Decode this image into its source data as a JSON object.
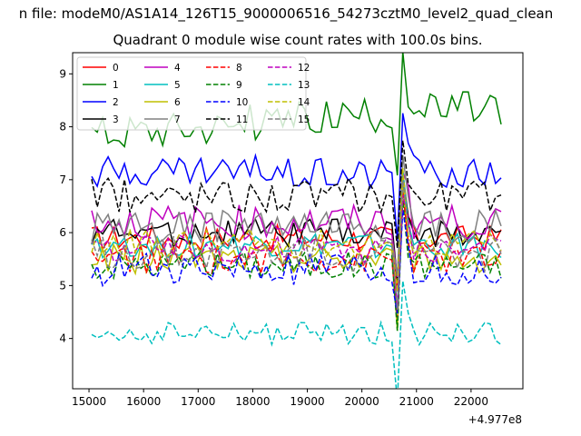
{
  "chart_data": {
    "type": "line",
    "suptitle": "n file: modeM0/AS1A14_126T15_9000006516_54273cztM0_level2_quad_clean",
    "title": "Quadrant 0 module wise count rates with 100.0s bins.",
    "xlabel": "",
    "ylabel": "",
    "x_offset_label": "+4.977e8",
    "xlim": [
      14700,
      22950
    ],
    "ylim": [
      3.05,
      9.4
    ],
    "x_ticks": [
      15000,
      16000,
      17000,
      18000,
      19000,
      20000,
      21000,
      22000
    ],
    "x_tick_labels": [
      "15000",
      "16000",
      "17000",
      "18000",
      "19000",
      "20000",
      "21000",
      "22000"
    ],
    "y_ticks": [
      4,
      5,
      6,
      7,
      8,
      9
    ],
    "y_tick_labels": [
      "4",
      "5",
      "6",
      "7",
      "8",
      "9"
    ],
    "legend_loc": "upper-left",
    "x_start": 15050,
    "x_step": 100,
    "x_count": 76,
    "spike_index": 56,
    "series": [
      {
        "name": "0",
        "color": "#ff0000",
        "dash": false,
        "mean": 5.9,
        "spread": 0.22
      },
      {
        "name": "1",
        "color": "#008000",
        "dash": false,
        "mean": 7.9,
        "spread": 0.32,
        "trend": 0.45
      },
      {
        "name": "2",
        "color": "#0000ff",
        "dash": false,
        "mean": 7.15,
        "spread": 0.28
      },
      {
        "name": "3",
        "color": "#000000",
        "dash": false,
        "mean": 6.0,
        "spread": 0.25
      },
      {
        "name": "4",
        "color": "#bf00bf",
        "dash": false,
        "mean": 6.2,
        "spread": 0.3
      },
      {
        "name": "5",
        "color": "#00bfbf",
        "dash": false,
        "mean": 5.75,
        "spread": 0.22
      },
      {
        "name": "6",
        "color": "#bfbf00",
        "dash": false,
        "mean": 5.5,
        "spread": 0.25
      },
      {
        "name": "7",
        "color": "#808080",
        "dash": false,
        "mean": 6.1,
        "spread": 0.3
      },
      {
        "name": "8",
        "color": "#ff0000",
        "dash": true,
        "mean": 5.5,
        "spread": 0.25
      },
      {
        "name": "9",
        "color": "#008000",
        "dash": true,
        "mean": 5.4,
        "spread": 0.25
      },
      {
        "name": "10",
        "color": "#0000ff",
        "dash": true,
        "mean": 5.3,
        "spread": 0.28
      },
      {
        "name": "11",
        "color": "#000000",
        "dash": true,
        "mean": 6.7,
        "spread": 0.3
      },
      {
        "name": "12",
        "color": "#bf00bf",
        "dash": true,
        "mean": 5.7,
        "spread": 0.25
      },
      {
        "name": "13",
        "color": "#00bfbf",
        "dash": true,
        "mean": 4.1,
        "spread": 0.2
      },
      {
        "name": "14",
        "color": "#bfbf00",
        "dash": true,
        "mean": 5.8,
        "spread": 0.25
      },
      {
        "name": "15",
        "color": "#808080",
        "dash": true,
        "mean": 5.6,
        "spread": 0.3
      }
    ]
  }
}
